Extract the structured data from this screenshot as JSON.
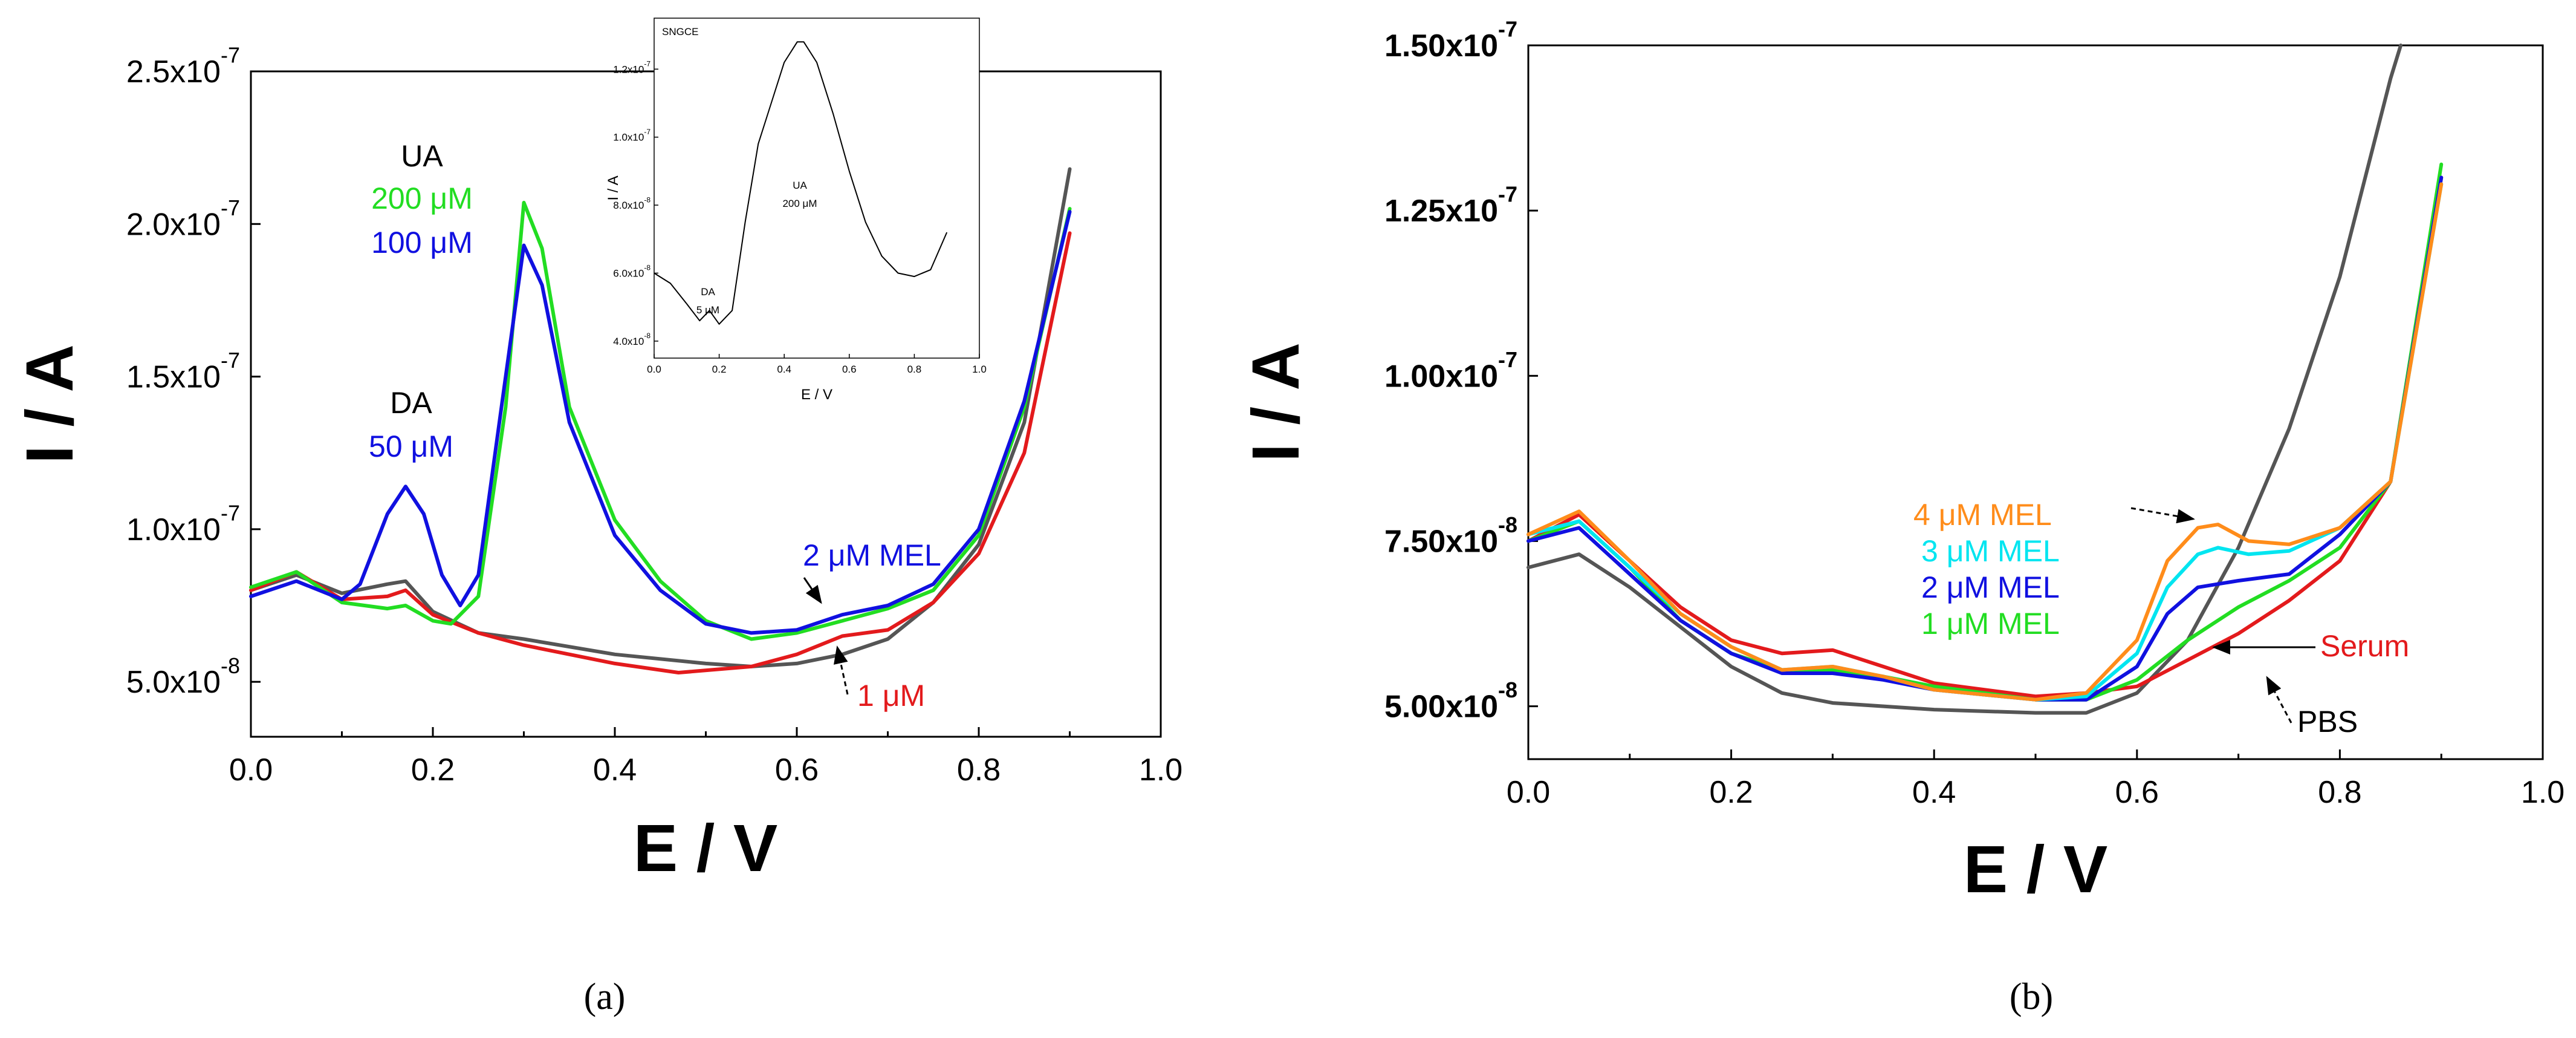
{
  "colors": {
    "red": "#e31a1c",
    "green": "#22dd22",
    "blue": "#1010e0",
    "gray": "#555555",
    "cyan": "#00e5f0",
    "orange": "#ff8c1a",
    "black": "#000000"
  },
  "captions": {
    "a": "(a)",
    "b": "(b)"
  },
  "chart_data": [
    {
      "id": "a",
      "type": "line",
      "xlabel": "E / V",
      "ylabel": "I / A",
      "xlim": [
        0.0,
        1.0
      ],
      "ylim": [
        3.2e-08,
        2.5e-07
      ],
      "xticks": [
        0.0,
        0.2,
        0.4,
        0.6,
        0.8,
        1.0
      ],
      "xtick_labels": [
        "0.0",
        "0.2",
        "0.4",
        "0.6",
        "0.8",
        "1.0"
      ],
      "yticks": [
        5e-08,
        1e-07,
        1.5e-07,
        2e-07,
        2.5e-07
      ],
      "ytick_labels": [
        "5.0x10-8",
        "1.0x10-7",
        "1.5x10-7",
        "2.0x10-7",
        "2.5x10-7"
      ],
      "series": [
        {
          "name": "gray",
          "color": "#555555",
          "x": [
            0.0,
            0.05,
            0.1,
            0.15,
            0.17,
            0.2,
            0.25,
            0.3,
            0.4,
            0.5,
            0.55,
            0.6,
            0.65,
            0.7,
            0.75,
            0.8,
            0.85,
            0.9
          ],
          "y": [
            8e-08,
            8.5e-08,
            7.9e-08,
            8.2e-08,
            8.3e-08,
            7.3e-08,
            6.6e-08,
            6.4e-08,
            5.9e-08,
            5.6e-08,
            5.5e-08,
            5.6e-08,
            5.9e-08,
            6.4e-08,
            7.6e-08,
            9.5e-08,
            1.35e-07,
            2.18e-07
          ]
        },
        {
          "name": "red",
          "color": "#e31a1c",
          "x": [
            0.0,
            0.05,
            0.1,
            0.15,
            0.17,
            0.2,
            0.25,
            0.3,
            0.4,
            0.47,
            0.55,
            0.6,
            0.65,
            0.7,
            0.75,
            0.8,
            0.85,
            0.9
          ],
          "y": [
            8e-08,
            8.6e-08,
            7.7e-08,
            7.8e-08,
            8e-08,
            7.2e-08,
            6.6e-08,
            6.2e-08,
            5.6e-08,
            5.3e-08,
            5.5e-08,
            5.9e-08,
            6.5e-08,
            6.7e-08,
            7.6e-08,
            9.2e-08,
            1.25e-07,
            1.97e-07
          ]
        },
        {
          "name": "green",
          "color": "#22dd22",
          "x": [
            0.0,
            0.05,
            0.1,
            0.15,
            0.17,
            0.2,
            0.22,
            0.25,
            0.28,
            0.3,
            0.32,
            0.35,
            0.4,
            0.45,
            0.5,
            0.55,
            0.6,
            0.65,
            0.7,
            0.75,
            0.8,
            0.85,
            0.9
          ],
          "y": [
            8.1e-08,
            8.6e-08,
            7.6e-08,
            7.4e-08,
            7.5e-08,
            7e-08,
            6.9e-08,
            7.8e-08,
            1.4e-07,
            2.07e-07,
            1.92e-07,
            1.4e-07,
            1.03e-07,
            8.3e-08,
            7e-08,
            6.4e-08,
            6.6e-08,
            7e-08,
            7.4e-08,
            8e-08,
            9.8e-08,
            1.4e-07,
            2.05e-07
          ]
        },
        {
          "name": "blue",
          "color": "#1010e0",
          "x": [
            0.0,
            0.05,
            0.1,
            0.12,
            0.15,
            0.17,
            0.19,
            0.21,
            0.23,
            0.25,
            0.28,
            0.3,
            0.32,
            0.35,
            0.4,
            0.45,
            0.5,
            0.55,
            0.6,
            0.65,
            0.7,
            0.75,
            0.8,
            0.85,
            0.9
          ],
          "y": [
            7.8e-08,
            8.3e-08,
            7.7e-08,
            8.2e-08,
            1.05e-07,
            1.14e-07,
            1.05e-07,
            8.5e-08,
            7.5e-08,
            8.5e-08,
            1.5e-07,
            1.93e-07,
            1.8e-07,
            1.35e-07,
            9.8e-08,
            8e-08,
            6.9e-08,
            6.6e-08,
            6.7e-08,
            7.2e-08,
            7.5e-08,
            8.2e-08,
            1e-07,
            1.42e-07,
            2.04e-07
          ]
        }
      ],
      "annotations": {
        "ua": "UA",
        "ua_green": "200 μM",
        "ua_blue": "100 μM",
        "da": "DA",
        "da_blue": "50 μM",
        "mel": "2 μM MEL",
        "one": "1 μM"
      },
      "inset": {
        "type": "line",
        "title": "SNGCE",
        "xlabel": "E / V",
        "ylabel": "I / A",
        "xlim": [
          0.0,
          1.0
        ],
        "ylim": [
          3.5e-08,
          1.35e-07
        ],
        "xtick_labels": [
          "0.0",
          "0.2",
          "0.4",
          "0.6",
          "0.8",
          "1.0"
        ],
        "yticks": [
          4e-08,
          6e-08,
          8e-08,
          1e-07,
          1.2e-07
        ],
        "ytick_labels": [
          "4.0x10-8",
          "6.0x10-8",
          "8.0x10-8",
          "1.0x10-7",
          "1.2x10-7"
        ],
        "labels": {
          "da": "DA",
          "da_conc": "5 μM",
          "ua": "UA",
          "ua_conc": "200 μM"
        },
        "series": [
          {
            "name": "SNGCE",
            "color": "#000000",
            "x": [
              0.0,
              0.05,
              0.1,
              0.14,
              0.17,
              0.2,
              0.24,
              0.28,
              0.32,
              0.36,
              0.4,
              0.44,
              0.46,
              0.5,
              0.55,
              0.6,
              0.65,
              0.7,
              0.75,
              0.8,
              0.85,
              0.9
            ],
            "y": [
              6e-08,
              5.7e-08,
              5.1e-08,
              4.6e-08,
              4.9e-08,
              4.5e-08,
              4.9e-08,
              7.5e-08,
              9.8e-08,
              1.1e-07,
              1.22e-07,
              1.28e-07,
              1.28e-07,
              1.22e-07,
              1.07e-07,
              9e-08,
              7.5e-08,
              6.5e-08,
              6e-08,
              5.9e-08,
              6.1e-08,
              7.2e-08
            ]
          }
        ]
      }
    },
    {
      "id": "b",
      "type": "line",
      "xlabel": "E / V",
      "ylabel": "I / A",
      "xlim": [
        0.0,
        1.0
      ],
      "ylim": [
        4.2e-08,
        1.5e-07
      ],
      "xticks": [
        0.0,
        0.2,
        0.4,
        0.6,
        0.8,
        1.0
      ],
      "xtick_labels": [
        "0.0",
        "0.2",
        "0.4",
        "0.6",
        "0.8",
        "1.0"
      ],
      "yticks": [
        5e-08,
        7.5e-08,
        1e-07,
        1.25e-07,
        1.5e-07
      ],
      "ytick_labels": [
        "5.00x10-8",
        "7.50x10-8",
        "1.00x10-7",
        "1.25x10-7",
        "1.50x10-7"
      ],
      "series": [
        {
          "name": "PBS",
          "color": "#555555",
          "x": [
            0.0,
            0.05,
            0.1,
            0.15,
            0.2,
            0.25,
            0.3,
            0.4,
            0.5,
            0.55,
            0.6,
            0.65,
            0.7,
            0.75,
            0.8,
            0.85,
            0.86
          ],
          "y": [
            7.1e-08,
            7.3e-08,
            6.8e-08,
            6.2e-08,
            5.6e-08,
            5.2e-08,
            5.05e-08,
            4.95e-08,
            4.9e-08,
            4.9e-08,
            5.2e-08,
            6e-08,
            7.4e-08,
            9.2e-08,
            1.15e-07,
            1.45e-07,
            1.5e-07
          ]
        },
        {
          "name": "Serum",
          "color": "#e31a1c",
          "x": [
            0.0,
            0.05,
            0.1,
            0.15,
            0.2,
            0.25,
            0.3,
            0.35,
            0.4,
            0.5,
            0.55,
            0.6,
            0.65,
            0.7,
            0.75,
            0.8,
            0.85,
            0.9
          ],
          "y": [
            7.5e-08,
            7.9e-08,
            7.2e-08,
            6.5e-08,
            6e-08,
            5.8e-08,
            5.85e-08,
            5.6e-08,
            5.35e-08,
            5.15e-08,
            5.2e-08,
            5.3e-08,
            5.7e-08,
            6.1e-08,
            6.6e-08,
            7.2e-08,
            8.4e-08,
            1.3e-07
          ]
        },
        {
          "name": "1 μM MEL",
          "color": "#22dd22",
          "x": [
            0.0,
            0.05,
            0.1,
            0.15,
            0.2,
            0.25,
            0.3,
            0.35,
            0.4,
            0.5,
            0.55,
            0.6,
            0.65,
            0.7,
            0.75,
            0.8,
            0.85,
            0.9
          ],
          "y": [
            7.5e-08,
            7.8e-08,
            7.1e-08,
            6.3e-08,
            5.8e-08,
            5.55e-08,
            5.55e-08,
            5.45e-08,
            5.3e-08,
            5.1e-08,
            5.1e-08,
            5.4e-08,
            6e-08,
            6.5e-08,
            6.9e-08,
            7.4e-08,
            8.4e-08,
            1.32e-07
          ]
        },
        {
          "name": "2 μM MEL",
          "color": "#1010e0",
          "x": [
            0.0,
            0.05,
            0.1,
            0.15,
            0.2,
            0.25,
            0.3,
            0.35,
            0.4,
            0.5,
            0.55,
            0.6,
            0.63,
            0.66,
            0.7,
            0.75,
            0.8,
            0.85,
            0.9
          ],
          "y": [
            7.5e-08,
            7.7e-08,
            7e-08,
            6.3e-08,
            5.8e-08,
            5.5e-08,
            5.5e-08,
            5.4e-08,
            5.25e-08,
            5.1e-08,
            5.1e-08,
            5.6e-08,
            6.4e-08,
            6.8e-08,
            6.9e-08,
            7e-08,
            7.6e-08,
            8.4e-08,
            1.3e-07
          ]
        },
        {
          "name": "3 μM MEL",
          "color": "#00e5f0",
          "x": [
            0.0,
            0.05,
            0.1,
            0.15,
            0.2,
            0.25,
            0.3,
            0.35,
            0.4,
            0.5,
            0.55,
            0.6,
            0.63,
            0.66,
            0.68,
            0.71,
            0.75,
            0.8,
            0.85,
            0.9
          ],
          "y": [
            7.6e-08,
            7.8e-08,
            7.1e-08,
            6.4e-08,
            5.9e-08,
            5.55e-08,
            5.6e-08,
            5.45e-08,
            5.25e-08,
            5.1e-08,
            5.15e-08,
            5.8e-08,
            6.8e-08,
            7.3e-08,
            7.4e-08,
            7.3e-08,
            7.35e-08,
            7.7e-08,
            8.4e-08,
            1.29e-07
          ]
        },
        {
          "name": "4 μM MEL",
          "color": "#ff8c1a",
          "x": [
            0.0,
            0.05,
            0.1,
            0.15,
            0.2,
            0.25,
            0.3,
            0.35,
            0.4,
            0.5,
            0.55,
            0.6,
            0.63,
            0.66,
            0.68,
            0.71,
            0.75,
            0.8,
            0.85,
            0.9
          ],
          "y": [
            7.6e-08,
            7.95e-08,
            7.2e-08,
            6.4e-08,
            5.9e-08,
            5.55e-08,
            5.6e-08,
            5.45e-08,
            5.25e-08,
            5.1e-08,
            5.2e-08,
            6e-08,
            7.2e-08,
            7.7e-08,
            7.75e-08,
            7.5e-08,
            7.45e-08,
            7.7e-08,
            8.4e-08,
            1.29e-07
          ]
        }
      ],
      "annotations": {
        "mel4": "4 μM MEL",
        "mel3": "3 μM MEL",
        "mel2": "2 μM MEL",
        "mel1": "1 μM MEL",
        "serum": "Serum",
        "pbs": "PBS"
      }
    }
  ]
}
